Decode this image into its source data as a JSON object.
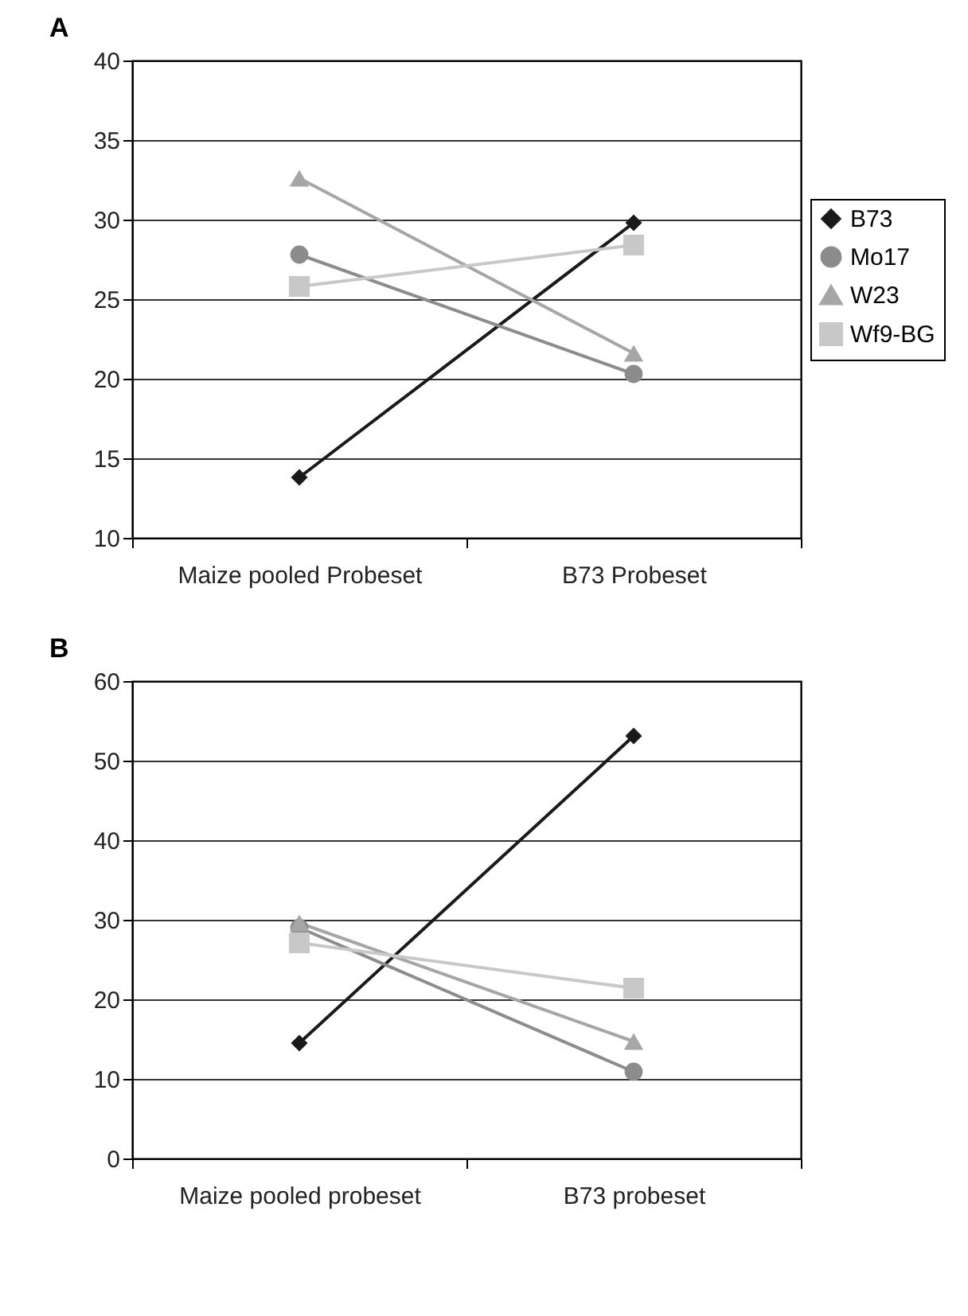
{
  "chart_data": [
    {
      "type": "line",
      "title": "A",
      "categories": [
        "Maize pooled Probeset",
        "B73 Probeset"
      ],
      "ylim": [
        10,
        40
      ],
      "yticks": [
        10,
        15,
        20,
        25,
        30,
        35,
        40
      ],
      "grid": "y",
      "legend": "right",
      "series": [
        {
          "name": "B73",
          "color": "#1a1a1a",
          "marker": "diamond",
          "values": [
            13.8,
            29.8
          ]
        },
        {
          "name": "Mo17",
          "color": "#8c8c8c",
          "marker": "circle",
          "values": [
            27.8,
            20.3
          ]
        },
        {
          "name": "W23",
          "color": "#a6a6a6",
          "marker": "triangle",
          "values": [
            32.6,
            21.6
          ]
        },
        {
          "name": "Wf9-BG",
          "color": "#c8c8c8",
          "marker": "square",
          "values": [
            25.8,
            28.4
          ]
        }
      ]
    },
    {
      "type": "line",
      "title": "B",
      "categories": [
        "Maize pooled probeset",
        "B73 probeset"
      ],
      "ylim": [
        0,
        60
      ],
      "yticks": [
        0,
        10,
        20,
        30,
        40,
        50,
        60
      ],
      "grid": "y",
      "legend": "right",
      "series": [
        {
          "name": "B73",
          "color": "#1a1a1a",
          "marker": "diamond",
          "values": [
            14.5,
            53.1
          ]
        },
        {
          "name": "Mo17",
          "color": "#8c8c8c",
          "marker": "circle",
          "values": [
            29.0,
            10.9
          ]
        },
        {
          "name": "W23",
          "color": "#a6a6a6",
          "marker": "triangle",
          "values": [
            29.6,
            14.7
          ]
        },
        {
          "name": "Wf9-BG",
          "color": "#c8c8c8",
          "marker": "square",
          "values": [
            27.1,
            21.4
          ]
        }
      ]
    }
  ]
}
